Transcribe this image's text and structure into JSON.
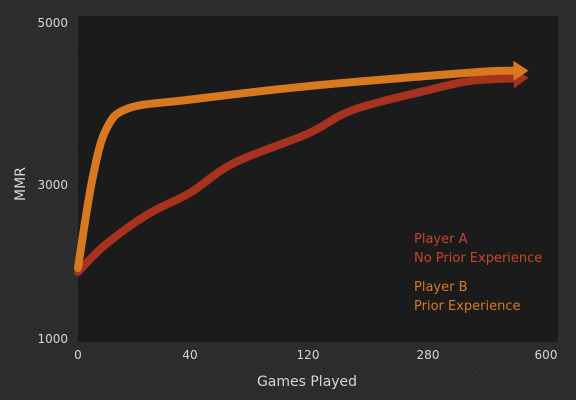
{
  "chart_data": {
    "type": "line",
    "xlabel": "Games Played",
    "ylabel": "MMR",
    "x_ticks": [
      "0",
      "40",
      "120",
      "280",
      "600"
    ],
    "y_ticks": [
      "1000",
      "3000",
      "5000"
    ],
    "ylim": [
      1000,
      5000
    ],
    "grid": false,
    "legend_position": "lower-right",
    "series": [
      {
        "name": "Player A",
        "name_line2": "No Prior Experience",
        "color": "#a7321f",
        "points": [
          [
            0,
            1850
          ],
          [
            10,
            2200
          ],
          [
            25,
            2580
          ],
          [
            40,
            2850
          ],
          [
            70,
            3230
          ],
          [
            120,
            3600
          ],
          [
            180,
            3900
          ],
          [
            280,
            4150
          ],
          [
            400,
            4270
          ],
          [
            520,
            4300
          ]
        ]
      },
      {
        "name": "Player B",
        "name_line2": "Prior Experience",
        "color": "#d9791f",
        "points": [
          [
            0,
            1900
          ],
          [
            5,
            3000
          ],
          [
            10,
            3650
          ],
          [
            18,
            3920
          ],
          [
            40,
            4030
          ],
          [
            120,
            4200
          ],
          [
            280,
            4330
          ],
          [
            450,
            4390
          ],
          [
            520,
            4395
          ]
        ]
      }
    ]
  }
}
